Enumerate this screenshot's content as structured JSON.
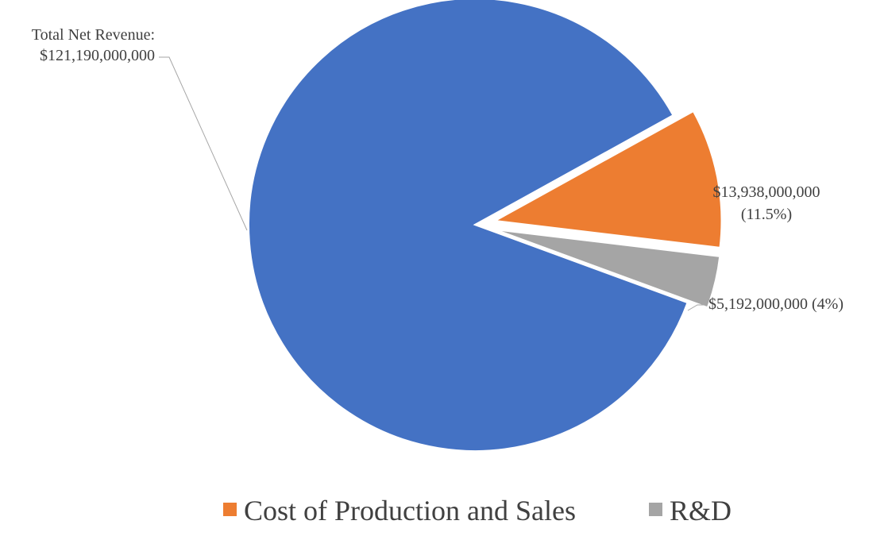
{
  "chart_data": {
    "type": "pie",
    "title": "",
    "series": [
      {
        "name": "Total Net Revenue",
        "value": 121190000000,
        "color": "#4472C4",
        "label_lines": [
          "Total Net Revenue:",
          "$121,190,000,000"
        ],
        "in_legend": false
      },
      {
        "name": "Cost of Production and Sales",
        "value": 13938000000,
        "percent": 11.5,
        "color": "#ED7D31",
        "label_lines": [
          "$13,938,000,000",
          "(11.5%)"
        ],
        "in_legend": true
      },
      {
        "name": "R&D",
        "value": 5192000000,
        "percent": 4,
        "color": "#A5A5A5",
        "label_lines": [
          "$5,192,000,000 (4%)"
        ],
        "in_legend": true
      }
    ],
    "legend_position": "bottom",
    "exploded_slices": [
      "Cost of Production and Sales",
      "R&D"
    ]
  }
}
